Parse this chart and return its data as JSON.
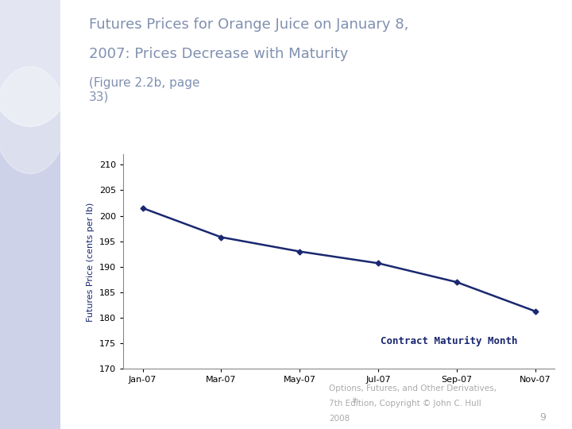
{
  "title_line1": "Futures Prices for Orange Juice on January 8,",
  "title_line2": "2007: Prices Decrease with Maturity",
  "title_suffix": "(Figure 2.2b, page\n33)",
  "title_color": "#8090b0",
  "xlabel": "Contract Maturity Month",
  "ylabel": "Futures Price (cents per lb)",
  "x_labels": [
    "Jan-07",
    "Mar-07",
    "May-07",
    "Jul-07",
    "Sep-07",
    "Nov-07"
  ],
  "x_values": [
    0,
    2,
    4,
    6,
    8,
    10
  ],
  "y_values": [
    201.5,
    195.8,
    193.0,
    190.7,
    187.0,
    181.3
  ],
  "ylim": [
    170,
    212
  ],
  "yticks": [
    170,
    175,
    180,
    185,
    190,
    195,
    200,
    205,
    210
  ],
  "line_color": "#1a2870",
  "marker": "D",
  "marker_size": 3.5,
  "line_width": 1.8,
  "xlabel_color": "#1a2870",
  "xlabel_fontsize": 9,
  "ylabel_fontsize": 8,
  "tick_fontsize": 8,
  "title_fontsize": 13,
  "title_suffix_fontsize": 11,
  "footnote_line1": "Options, Futures, and Other Derivatives,",
  "footnote_line2": "7th Edition, Copyright © John C. Hull",
  "footnote_line3": "2008",
  "page_number": "9",
  "bg_color": "#ffffff",
  "left_panel_color": "#cdd2e8",
  "footnote_color": "#aaaaaa"
}
